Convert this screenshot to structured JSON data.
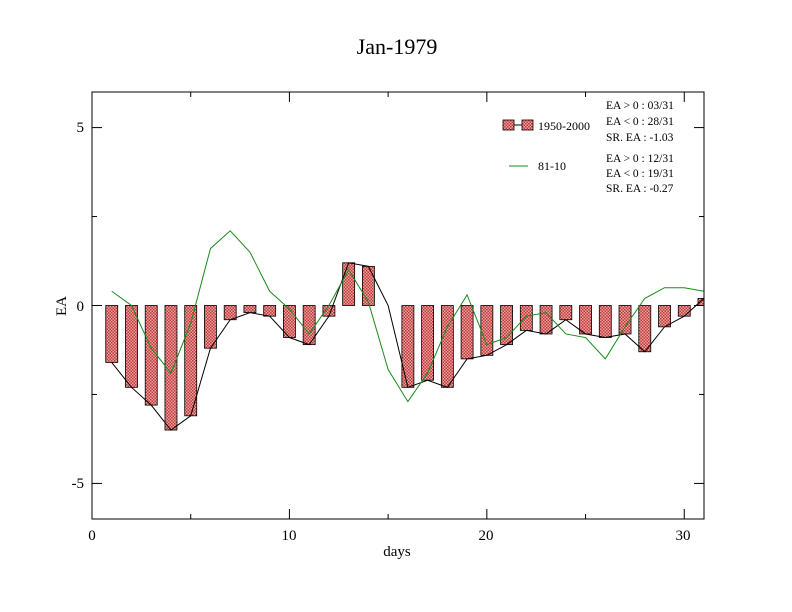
{
  "chart_data": {
    "type": "bar",
    "title": "Jan-1979",
    "xlabel": "days",
    "ylabel": "EA",
    "xlim": [
      0,
      31
    ],
    "ylim": [
      -6,
      6
    ],
    "x_ticks": [
      0,
      10,
      20,
      30
    ],
    "y_ticks": [
      -5,
      0,
      5
    ],
    "x_tick_labels": [
      "0",
      "10",
      "20",
      "30"
    ],
    "y_tick_labels": [
      "-5",
      "0",
      "5"
    ],
    "grid": false,
    "legend_position": "top-right",
    "days": [
      1,
      2,
      3,
      4,
      5,
      6,
      7,
      8,
      9,
      10,
      11,
      12,
      13,
      14,
      15,
      16,
      17,
      18,
      19,
      20,
      21,
      22,
      23,
      24,
      25,
      26,
      27,
      28,
      29,
      30,
      31
    ],
    "series": [
      {
        "name": "1950-2000",
        "type": "bar",
        "color": "#e07070",
        "values": [
          -1.6,
          -2.3,
          -2.8,
          -3.5,
          -3.1,
          -1.2,
          -0.4,
          -0.2,
          -0.3,
          -0.9,
          -1.1,
          -0.3,
          1.2,
          1.1,
          0.0,
          -2.3,
          -2.1,
          -2.3,
          -1.5,
          -1.4,
          -1.1,
          -0.7,
          -0.8,
          -0.4,
          -0.8,
          -0.9,
          -0.8,
          -1.3,
          -0.6,
          -0.3,
          0.2
        ]
      },
      {
        "name": "81-10",
        "type": "line",
        "color": "#1a8a1a",
        "values": [
          0.4,
          0.0,
          -1.2,
          -1.9,
          -0.5,
          1.6,
          2.1,
          1.5,
          0.4,
          -0.1,
          -0.8,
          0.0,
          1.0,
          0.1,
          -1.8,
          -2.7,
          -1.9,
          -0.6,
          0.3,
          -1.1,
          -0.9,
          -0.3,
          -0.2,
          -0.8,
          -0.9,
          -1.5,
          -0.6,
          0.2,
          0.5,
          0.5,
          0.4
        ]
      }
    ],
    "stats_1950_2000": [
      "EA > 0 : 03/31",
      "EA < 0 : 28/31",
      "SR. EA : -1.03"
    ],
    "stats_81_10": [
      "EA > 0 : 12/31",
      "EA < 0 : 19/31",
      "SR. EA : -0.27"
    ]
  }
}
